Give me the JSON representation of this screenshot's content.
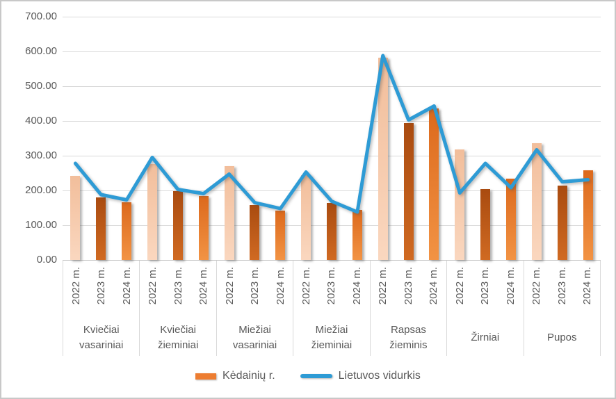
{
  "chart_data": {
    "type": "combo",
    "categories": [
      "Kviečiai vasariniai",
      "Kviečiai žieminiai",
      "Miežiai vasariniai",
      "Miežiai žieminiai",
      "Rapsas žieminis",
      "Žirniai",
      "Pupos"
    ],
    "sub_categories": [
      "2022 m.",
      "2023 m.",
      "2024 m."
    ],
    "series": [
      {
        "name": "Kėdainių r.",
        "type": "bar",
        "color": "#ED7D31",
        "values_by_category": [
          [
            243,
            181,
            167
          ],
          [
            276,
            198,
            185
          ],
          [
            271,
            158,
            143
          ],
          [
            245,
            165,
            145
          ],
          [
            583,
            395,
            436
          ],
          [
            319,
            205,
            235
          ],
          [
            337,
            215,
            258
          ]
        ]
      },
      {
        "name": "Lietuvos vidurkis",
        "type": "line",
        "color": "#2E9BD5",
        "values_by_category": [
          [
            278,
            188,
            173
          ],
          [
            295,
            203,
            191
          ],
          [
            247,
            165,
            148
          ],
          [
            253,
            169,
            138
          ],
          [
            588,
            403,
            443
          ],
          [
            193,
            278,
            208
          ],
          [
            317,
            225,
            231
          ]
        ]
      }
    ],
    "bar_styles": [
      {
        "sub_category": "2022 m.",
        "top": "#F2BE9B",
        "bottom": "#FAD7BF"
      },
      {
        "sub_category": "2023 m.",
        "top": "#A94B10",
        "bottom": "#D06A22"
      },
      {
        "sub_category": "2024 m.",
        "top": "#DC691C",
        "bottom": "#F29344"
      }
    ],
    "y_axis": {
      "min": 0,
      "max": 700,
      "step": 100,
      "tick_labels": [
        "700.00",
        "600.00",
        "500.00",
        "400.00",
        "300.00",
        "200.00",
        "100.00",
        "0.00"
      ]
    },
    "grid": true,
    "legend_position": "bottom",
    "grid_color": "#D9D9D9",
    "text_color": "#595959"
  }
}
